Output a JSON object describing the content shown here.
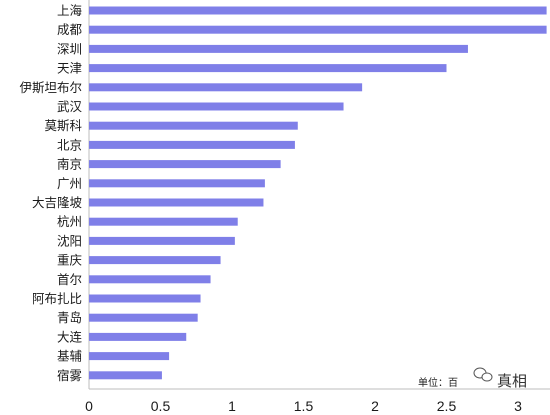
{
  "chart_data": {
    "type": "bar",
    "orientation": "horizontal",
    "categories": [
      "上海",
      "成都",
      "深圳",
      "天津",
      "伊斯坦布尔",
      "武汉",
      "莫斯科",
      "北京",
      "南京",
      "广州",
      "大吉隆坡",
      "杭州",
      "沈阳",
      "重庆",
      "首尔",
      "阿布扎比",
      "青岛",
      "大连",
      "基辅",
      "宿雾"
    ],
    "values": [
      3.2,
      3.2,
      2.65,
      2.5,
      1.91,
      1.78,
      1.46,
      1.44,
      1.34,
      1.23,
      1.22,
      1.04,
      1.02,
      0.92,
      0.85,
      0.78,
      0.76,
      0.68,
      0.56,
      0.51
    ],
    "x_ticks": [
      "0",
      "0.5",
      "1",
      "1.5",
      "2",
      "2.5",
      "3"
    ],
    "xlim": [
      0,
      3.2
    ],
    "bar_color": "#7f7fe8",
    "grid": false,
    "unit_note": "单位：百",
    "watermark": "真相"
  }
}
